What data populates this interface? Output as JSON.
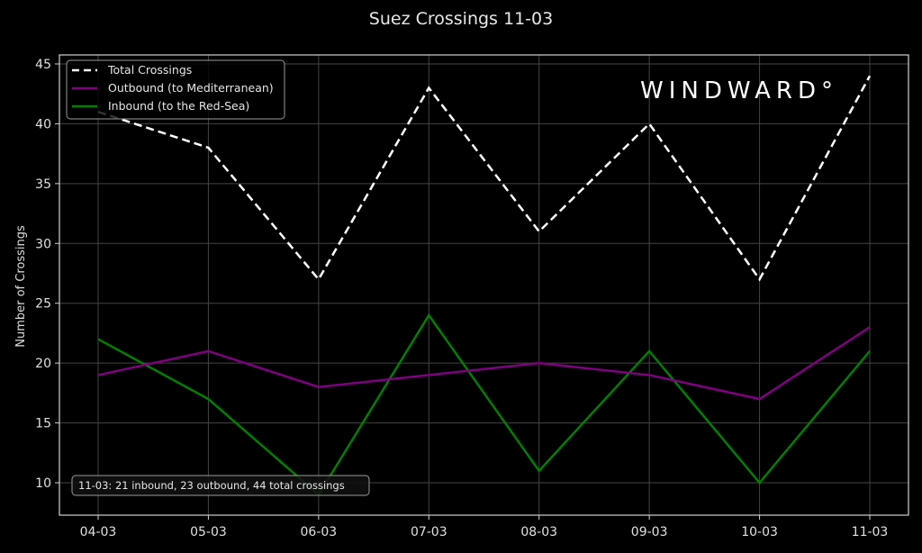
{
  "chart_data": {
    "type": "line",
    "title": "Suez Crossings 11-03",
    "xlabel": "",
    "ylabel": "Number of Crossings",
    "categories": [
      "04-03",
      "05-03",
      "06-03",
      "07-03",
      "08-03",
      "09-03",
      "10-03",
      "11-03"
    ],
    "series": [
      {
        "name": "Total Crossings",
        "values": [
          41,
          38,
          27,
          43,
          31,
          40,
          27,
          44
        ],
        "color": "#ffffff",
        "style": "dashed"
      },
      {
        "name": "Outbound (to Mediterranean)",
        "values": [
          19,
          21,
          18,
          19,
          20,
          19,
          17,
          23
        ],
        "color": "#800080",
        "style": "solid"
      },
      {
        "name": "Inbound (to the Red-Sea)",
        "values": [
          22,
          17,
          9,
          24,
          11,
          21,
          10,
          21
        ],
        "color": "#008000",
        "style": "solid"
      }
    ],
    "yticks": [
      10,
      15,
      20,
      25,
      30,
      35,
      40,
      45
    ],
    "ylim": [
      8.2,
      46.3
    ],
    "grid": true,
    "legend_position": "upper left",
    "annotation": "11-03: 21 inbound, 23 outbound, 44 total crossings",
    "watermark": "WINDWARD°"
  },
  "legend": {
    "total": "Total Crossings",
    "outbound": "Outbound (to Mediterranean)",
    "inbound": "Inbound (to the Red-Sea)"
  },
  "annotation": "11-03: 21 inbound, 23 outbound, 44 total crossings",
  "brand": "WINDWARD°",
  "colors": {
    "background": "#000000",
    "total": "#ffffff",
    "outbound": "#800080",
    "inbound": "#008000",
    "grid": "#4a4a4a"
  }
}
